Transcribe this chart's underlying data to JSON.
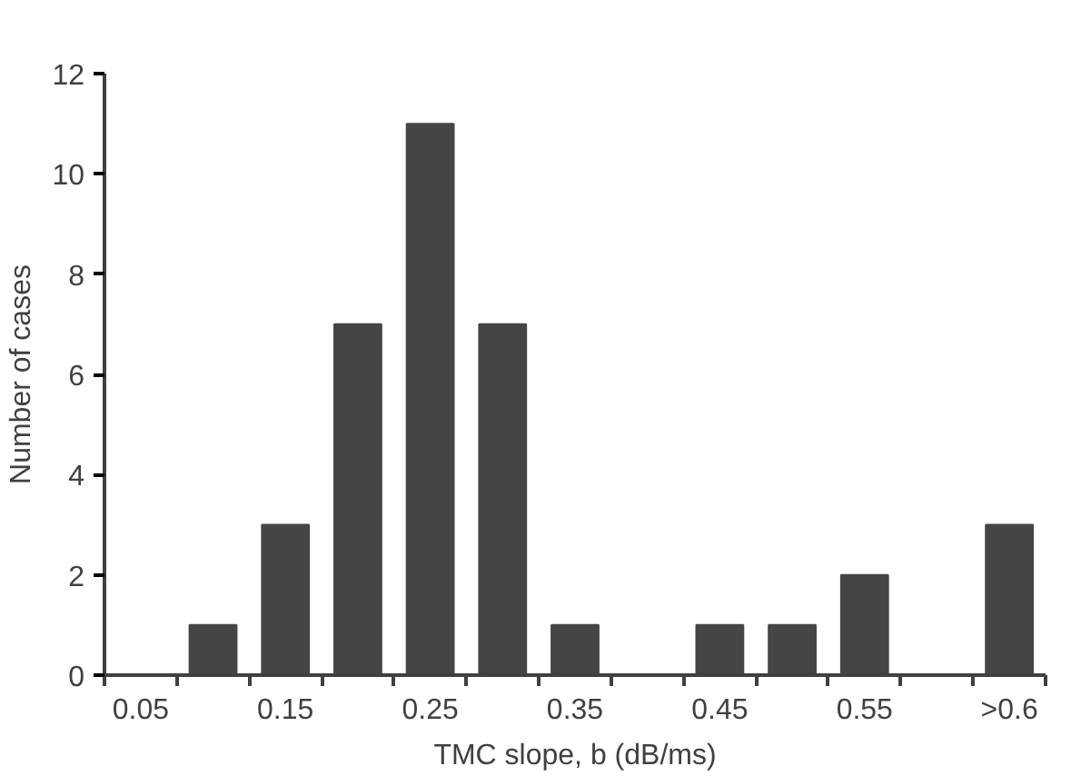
{
  "chart_data": {
    "type": "bar",
    "xlabel": "TMC slope, b (dB/ms)",
    "ylabel": "Number of cases",
    "categories": [
      "0.05",
      null,
      "0.15",
      null,
      "0.25",
      null,
      "0.35",
      null,
      "0.45",
      null,
      "0.55",
      null,
      ">0.6"
    ],
    "values": [
      0,
      1,
      3,
      7,
      11,
      7,
      1,
      0,
      1,
      1,
      2,
      0,
      3
    ],
    "color": "#454547",
    "ylim": [
      0,
      12
    ],
    "yticks": [
      0,
      2,
      4,
      6,
      8,
      10,
      12
    ],
    "grid": false
  }
}
